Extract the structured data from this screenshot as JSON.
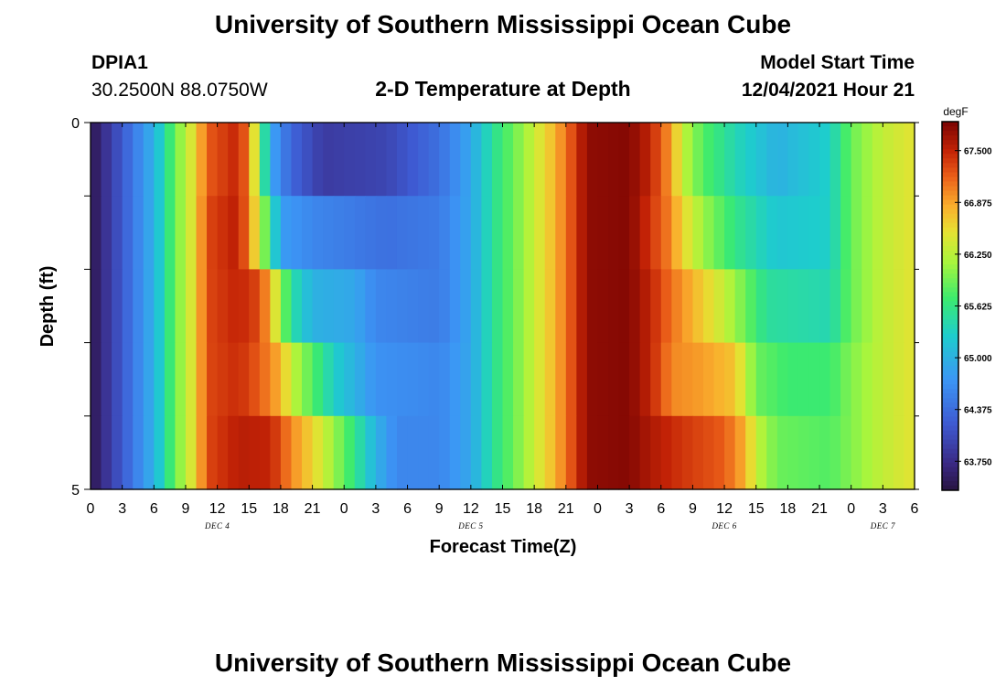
{
  "header": {
    "title": "University of Southern Mississippi Ocean Cube",
    "station_id": "DPIA1",
    "station_coords": "30.2500N  88.0750W",
    "plot_title": "2-D Temperature at Depth",
    "model_start_label": "Model Start Time",
    "model_start_value": "12/04/2021 Hour 21"
  },
  "footer": {
    "title": "University of Southern Mississippi Ocean Cube"
  },
  "chart_data": {
    "type": "heatmap",
    "xlabel": "Forecast Time(Z)",
    "ylabel": "Depth (ft)",
    "colorbar_unit": "degF",
    "x_tick_labels": [
      "0",
      "3",
      "6",
      "9",
      "12",
      "15",
      "18",
      "21",
      "0",
      "3",
      "6",
      "9",
      "12",
      "15",
      "18",
      "21",
      "0",
      "3",
      "6",
      "9",
      "12",
      "15",
      "18",
      "21",
      "0",
      "3",
      "6"
    ],
    "day_labels": [
      {
        "label": "DEC 4",
        "hour": 12
      },
      {
        "label": "DEC 5",
        "hour": 36
      },
      {
        "label": "DEC 6",
        "hour": 60
      },
      {
        "label": "DEC 7",
        "hour": 75
      }
    ],
    "x_range_hours": [
      0,
      78
    ],
    "y_range_ft": [
      0,
      5
    ],
    "y_tick_labels": [
      "0",
      "5"
    ],
    "depth_rows": [
      0,
      1,
      2,
      3,
      4
    ],
    "colorbar_ticks": [
      "67.500",
      "66.875",
      "66.250",
      "65.625",
      "65.000",
      "64.375",
      "63.750"
    ],
    "colorbar_range": [
      63.4,
      67.85
    ],
    "colors": {
      "dark_navy": "#2b1a4d",
      "blue": "#3f66d8",
      "light_blue": "#3aa0f0",
      "cyan": "#1dd3c1",
      "green": "#4ff06a",
      "yellow": "#e0e53a",
      "orange": "#f07f1e",
      "red": "#cc2a05",
      "dark_red": "#7a0402"
    },
    "temperature_profiles": [
      {
        "depth_row": 0,
        "keyframes": [
          [
            0,
            63.45
          ],
          [
            3,
            64.2
          ],
          [
            6,
            65.0
          ],
          [
            8,
            65.9
          ],
          [
            10,
            66.6
          ],
          [
            11,
            67.2
          ],
          [
            14,
            67.5
          ],
          [
            15,
            67.0
          ],
          [
            16,
            66.0
          ],
          [
            17,
            64.9
          ],
          [
            19,
            64.3
          ],
          [
            22,
            63.9
          ],
          [
            28,
            64.0
          ],
          [
            33,
            64.4
          ],
          [
            36,
            64.9
          ],
          [
            38,
            65.5
          ],
          [
            41,
            66.1
          ],
          [
            44,
            66.8
          ],
          [
            46,
            67.4
          ],
          [
            47,
            67.75
          ],
          [
            51,
            67.8
          ],
          [
            53,
            67.5
          ],
          [
            55,
            66.9
          ],
          [
            56,
            66.3
          ],
          [
            58,
            65.8
          ],
          [
            61,
            65.4
          ],
          [
            65,
            65.0
          ],
          [
            70,
            65.3
          ],
          [
            72,
            65.9
          ],
          [
            75,
            66.3
          ],
          [
            78,
            66.5
          ]
        ]
      },
      {
        "depth_row": 1,
        "keyframes": [
          [
            0,
            63.45
          ],
          [
            3,
            64.2
          ],
          [
            6,
            65.0
          ],
          [
            8,
            65.9
          ],
          [
            10,
            66.6
          ],
          [
            11,
            67.3
          ],
          [
            14,
            67.55
          ],
          [
            15,
            67.0
          ],
          [
            16,
            66.3
          ],
          [
            17,
            65.6
          ],
          [
            18,
            64.8
          ],
          [
            21,
            64.6
          ],
          [
            28,
            64.4
          ],
          [
            33,
            64.5
          ],
          [
            36,
            64.9
          ],
          [
            38,
            65.5
          ],
          [
            41,
            66.1
          ],
          [
            44,
            66.8
          ],
          [
            46,
            67.4
          ],
          [
            47,
            67.75
          ],
          [
            51,
            67.8
          ],
          [
            53,
            67.4
          ],
          [
            55,
            67.0
          ],
          [
            56,
            66.6
          ],
          [
            58,
            66.1
          ],
          [
            61,
            65.6
          ],
          [
            65,
            65.2
          ],
          [
            70,
            65.3
          ],
          [
            72,
            65.9
          ],
          [
            75,
            66.3
          ],
          [
            78,
            66.5
          ]
        ]
      },
      {
        "depth_row": 2,
        "keyframes": [
          [
            0,
            63.45
          ],
          [
            3,
            64.2
          ],
          [
            6,
            65.0
          ],
          [
            8,
            65.9
          ],
          [
            10,
            66.6
          ],
          [
            11,
            67.3
          ],
          [
            14,
            67.5
          ],
          [
            16,
            67.3
          ],
          [
            17,
            66.8
          ],
          [
            18,
            66.1
          ],
          [
            19,
            65.5
          ],
          [
            21,
            65.0
          ],
          [
            25,
            64.9
          ],
          [
            27,
            64.6
          ],
          [
            33,
            64.5
          ],
          [
            36,
            64.9
          ],
          [
            38,
            65.5
          ],
          [
            41,
            66.1
          ],
          [
            44,
            66.8
          ],
          [
            46,
            67.4
          ],
          [
            47,
            67.75
          ],
          [
            51,
            67.8
          ],
          [
            53,
            67.5
          ],
          [
            55,
            67.1
          ],
          [
            57,
            66.8
          ],
          [
            60,
            66.3
          ],
          [
            62,
            65.9
          ],
          [
            64,
            65.5
          ],
          [
            70,
            65.4
          ],
          [
            72,
            65.9
          ],
          [
            75,
            66.3
          ],
          [
            78,
            66.5
          ]
        ]
      },
      {
        "depth_row": 3,
        "keyframes": [
          [
            0,
            63.45
          ],
          [
            3,
            64.2
          ],
          [
            6,
            65.0
          ],
          [
            8,
            65.9
          ],
          [
            10,
            66.6
          ],
          [
            11,
            67.3
          ],
          [
            14,
            67.45
          ],
          [
            16,
            67.2
          ],
          [
            18,
            66.8
          ],
          [
            19,
            66.3
          ],
          [
            21,
            65.8
          ],
          [
            23,
            65.3
          ],
          [
            25,
            65.0
          ],
          [
            27,
            64.7
          ],
          [
            33,
            64.6
          ],
          [
            36,
            64.9
          ],
          [
            38,
            65.5
          ],
          [
            41,
            66.1
          ],
          [
            44,
            66.8
          ],
          [
            46,
            67.4
          ],
          [
            47,
            67.75
          ],
          [
            51,
            67.8
          ],
          [
            53,
            67.5
          ],
          [
            55,
            67.0
          ],
          [
            58,
            66.9
          ],
          [
            61,
            66.7
          ],
          [
            62,
            66.3
          ],
          [
            63,
            65.9
          ],
          [
            66,
            65.7
          ],
          [
            70,
            65.7
          ],
          [
            72,
            66.0
          ],
          [
            75,
            66.3
          ],
          [
            78,
            66.5
          ]
        ]
      },
      {
        "depth_row": 4,
        "keyframes": [
          [
            0,
            63.45
          ],
          [
            3,
            64.2
          ],
          [
            6,
            65.0
          ],
          [
            8,
            65.9
          ],
          [
            10,
            66.6
          ],
          [
            11,
            67.3
          ],
          [
            14,
            67.55
          ],
          [
            17,
            67.5
          ],
          [
            19,
            67.0
          ],
          [
            21,
            66.6
          ],
          [
            23,
            66.1
          ],
          [
            25,
            65.6
          ],
          [
            27,
            65.0
          ],
          [
            29,
            64.6
          ],
          [
            33,
            64.6
          ],
          [
            36,
            64.9
          ],
          [
            38,
            65.5
          ],
          [
            41,
            66.1
          ],
          [
            44,
            66.8
          ],
          [
            46,
            67.4
          ],
          [
            47,
            67.75
          ],
          [
            51,
            67.8
          ],
          [
            53,
            67.6
          ],
          [
            56,
            67.4
          ],
          [
            60,
            67.2
          ],
          [
            62,
            66.8
          ],
          [
            63,
            66.3
          ],
          [
            65,
            65.9
          ],
          [
            70,
            65.8
          ],
          [
            72,
            66.0
          ],
          [
            75,
            66.3
          ],
          [
            78,
            66.5
          ]
        ]
      }
    ]
  }
}
